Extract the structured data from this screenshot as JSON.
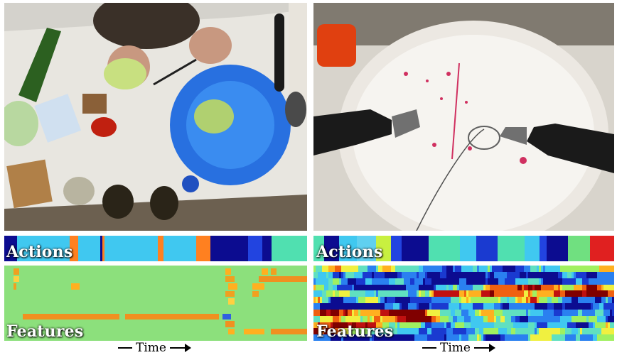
{
  "left": {
    "actions_label": "Actions",
    "features_label": "Features",
    "time_label": "Time",
    "actions": [
      {
        "c": "#0c0c90",
        "w": 4.2
      },
      {
        "c": "#40c8f0",
        "w": 17.4
      },
      {
        "c": "#ff8020",
        "w": 2.8
      },
      {
        "c": "#40c8f0",
        "w": 7.3
      },
      {
        "c": "#0c0c90",
        "w": 0.8
      },
      {
        "c": "#ff8020",
        "w": 0.6
      },
      {
        "c": "#40c8f0",
        "w": 17.5
      },
      {
        "c": "#ff8020",
        "w": 2.0
      },
      {
        "c": "#40c8f0",
        "w": 10.7
      },
      {
        "c": "#ff8020",
        "w": 4.8
      },
      {
        "c": "#0c0c90",
        "w": 12.5
      },
      {
        "c": "#2244e0",
        "w": 4.7
      },
      {
        "c": "#0c0c90",
        "w": 3.0
      },
      {
        "c": "#50e0b0",
        "w": 11.7
      }
    ],
    "features": [
      {
        "row": 0,
        "start": 3,
        "end": 5,
        "color": "#f0a020"
      },
      {
        "row": 1,
        "start": 3,
        "end": 5,
        "color": "#ffd040"
      },
      {
        "row": 2,
        "start": 3,
        "end": 4,
        "color": "#f0a020"
      },
      {
        "row": 2,
        "start": 22,
        "end": 25,
        "color": "#ffb020"
      },
      {
        "row": 6,
        "start": 6,
        "end": 38,
        "color": "#f09020"
      },
      {
        "row": 6,
        "start": 40,
        "end": 71,
        "color": "#f09020"
      },
      {
        "row": 0,
        "start": 73,
        "end": 75,
        "color": "#ffb020"
      },
      {
        "row": 1,
        "start": 73,
        "end": 76,
        "color": "#f0a020"
      },
      {
        "row": 2,
        "start": 74,
        "end": 77,
        "color": "#ffb020"
      },
      {
        "row": 3,
        "start": 73,
        "end": 76,
        "color": "#f0a020"
      },
      {
        "row": 4,
        "start": 74,
        "end": 76,
        "color": "#ffd040"
      },
      {
        "row": 6,
        "start": 72,
        "end": 75,
        "color": "#3060e0"
      },
      {
        "row": 7,
        "start": 73,
        "end": 76,
        "color": "#f09020"
      },
      {
        "row": 8,
        "start": 74,
        "end": 76,
        "color": "#ffb020"
      },
      {
        "row": 0,
        "start": 85,
        "end": 87,
        "color": "#ffb020"
      },
      {
        "row": 0,
        "start": 88,
        "end": 90,
        "color": "#f0a020"
      },
      {
        "row": 1,
        "start": 84,
        "end": 100,
        "color": "#f09020"
      },
      {
        "row": 2,
        "start": 82,
        "end": 86,
        "color": "#ffb020"
      },
      {
        "row": 3,
        "start": 82,
        "end": 84,
        "color": "#f0a020"
      },
      {
        "row": 8,
        "start": 79,
        "end": 86,
        "color": "#ffb020"
      },
      {
        "row": 8,
        "start": 88,
        "end": 100,
        "color": "#f09020"
      }
    ]
  },
  "right": {
    "actions_label": "Actions",
    "features_label": "Features",
    "time_label": "Time",
    "actions": [
      {
        "c": "#50e0b0",
        "w": 3.5
      },
      {
        "c": "#0c0c90",
        "w": 5.0
      },
      {
        "c": "#40c8f0",
        "w": 6.0
      },
      {
        "c": "#60d0f0",
        "w": 6.5
      },
      {
        "c": "#c8f040",
        "w": 5.0
      },
      {
        "c": "#2244e0",
        "w": 3.5
      },
      {
        "c": "#0c0c90",
        "w": 9.0
      },
      {
        "c": "#50e0b0",
        "w": 10.5
      },
      {
        "c": "#40c8f0",
        "w": 5.5
      },
      {
        "c": "#1a3ad0",
        "w": 7.0
      },
      {
        "c": "#50e0b0",
        "w": 9.0
      },
      {
        "c": "#40c8f0",
        "w": 5.0
      },
      {
        "c": "#2244e0",
        "w": 2.5
      },
      {
        "c": "#0c0c90",
        "w": 7.0
      },
      {
        "c": "#70e080",
        "w": 7.5
      },
      {
        "c": "#e02020",
        "w": 8.0
      }
    ]
  }
}
